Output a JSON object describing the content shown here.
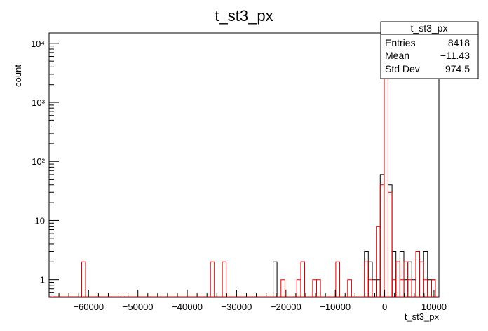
{
  "chart_data": {
    "type": "histogram",
    "title": "t_st3_px",
    "xlabel": "t_st3_px",
    "ylabel": "count",
    "xlim": [
      -68000,
      11000
    ],
    "ylim": [
      0.5,
      15000
    ],
    "log_y": true,
    "x_ticks": [
      -60000,
      -50000,
      -40000,
      -30000,
      -20000,
      -10000,
      0,
      10000
    ],
    "x_tick_labels": [
      "−60000",
      "−50000",
      "−40000",
      "−30000",
      "−20000",
      "−10000",
      "0",
      "10000"
    ],
    "y_ticks": [
      1,
      10,
      100,
      1000,
      10000
    ],
    "y_tick_labels": [
      "1",
      "10",
      "10²",
      "10³",
      "10⁴"
    ],
    "bin_width": 790,
    "stats": {
      "title": "t_st3_px",
      "rows": [
        {
          "label": "Entries",
          "value": "8418"
        },
        {
          "label": "Mean",
          "value": "−11.43"
        },
        {
          "label": "Std Dev",
          "value": "974.5"
        }
      ]
    },
    "series": [
      {
        "color": "#000000",
        "bins": [
          [
            -22200,
            2
          ],
          [
            -16600,
            2
          ],
          [
            -3700,
            3
          ],
          [
            -2900,
            2
          ],
          [
            -2100,
            1
          ],
          [
            -1300,
            1
          ],
          [
            -500,
            60
          ],
          [
            300,
            7500
          ],
          [
            1100,
            40
          ],
          [
            1900,
            3
          ],
          [
            2700,
            2
          ],
          [
            3500,
            3
          ],
          [
            4300,
            1
          ],
          [
            5100,
            2
          ],
          [
            5900,
            1
          ],
          [
            8300,
            3
          ],
          [
            9100,
            1
          ],
          [
            9900,
            1
          ]
        ]
      },
      {
        "color": "#e00000",
        "bins": [
          [
            -61000,
            2
          ],
          [
            -34900,
            2
          ],
          [
            -32500,
            2
          ],
          [
            -20600,
            1
          ],
          [
            -17400,
            1
          ],
          [
            -16600,
            2
          ],
          [
            -14200,
            1
          ],
          [
            -13400,
            1
          ],
          [
            -9500,
            2
          ],
          [
            -7100,
            1
          ],
          [
            -3700,
            2
          ],
          [
            -2900,
            1
          ],
          [
            -1300,
            8
          ],
          [
            -500,
            40
          ],
          [
            300,
            8000
          ],
          [
            1100,
            30
          ],
          [
            1900,
            1
          ],
          [
            2700,
            2
          ],
          [
            3500,
            1
          ],
          [
            4300,
            2
          ],
          [
            5100,
            1
          ],
          [
            6700,
            3
          ],
          [
            7500,
            2
          ],
          [
            8300,
            1
          ],
          [
            9900,
            1
          ]
        ]
      }
    ]
  }
}
